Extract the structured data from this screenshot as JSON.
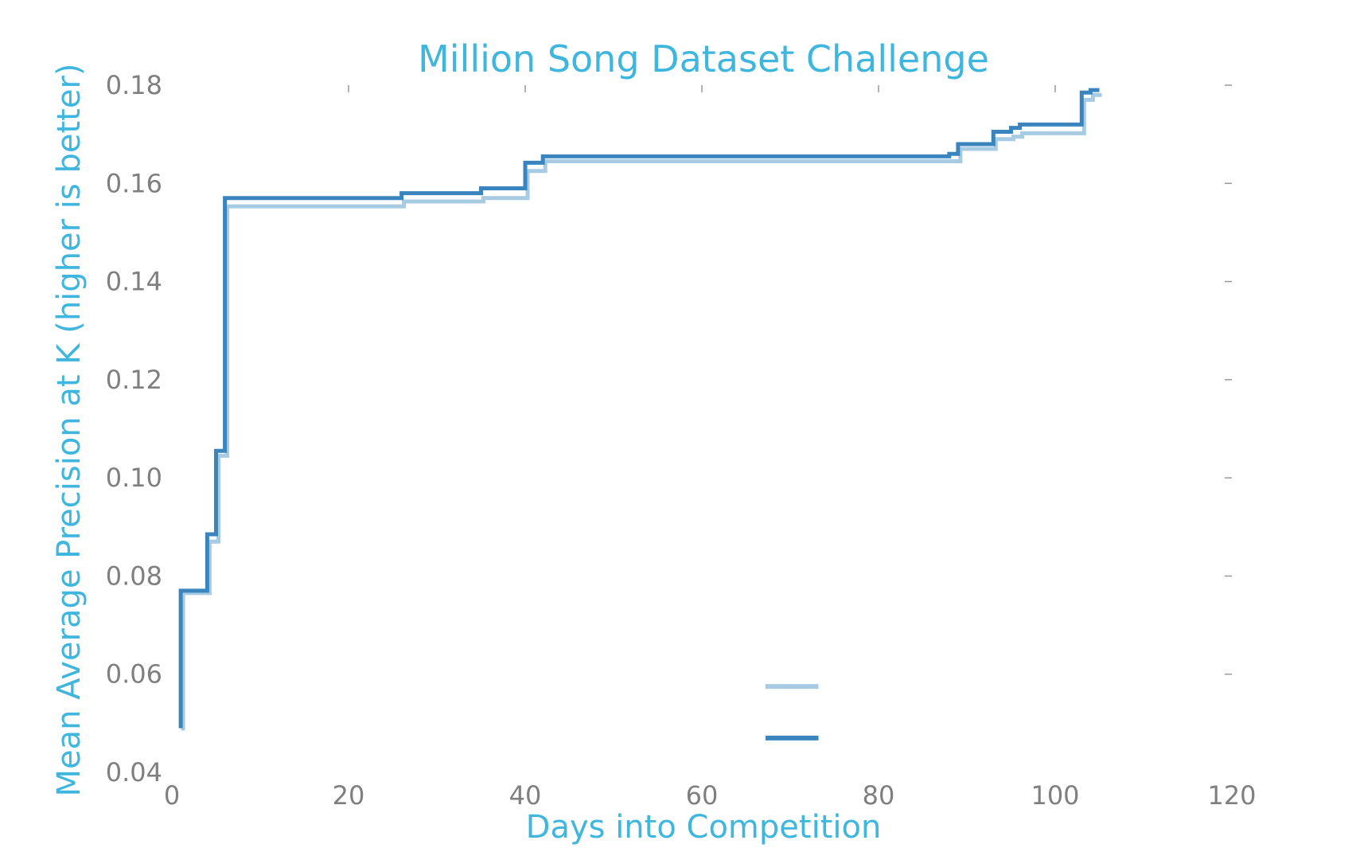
{
  "colors": {
    "accent_text": "#3fb6de",
    "tick_text": "#7f7f7f",
    "tick_mark": "#999999",
    "series_light": "#a6cbe3",
    "series_dark": "#3a85bd"
  },
  "chart_data": {
    "type": "line",
    "step": "post",
    "title": "Million Song Dataset Challenge",
    "xlabel": "Days into Competition",
    "ylabel": "Mean Average Precision at K (higher is better)",
    "xlim": [
      0,
      120
    ],
    "ylim": [
      0.04,
      0.18
    ],
    "xticks": [
      0,
      20,
      40,
      60,
      80,
      100,
      120
    ],
    "xtick_labels": [
      "0",
      "20",
      "40",
      "60",
      "80",
      "100",
      "120"
    ],
    "yticks": [
      0.04,
      0.06,
      0.08,
      0.1,
      0.12,
      0.14,
      0.16,
      0.18
    ],
    "ytick_labels": [
      "0.04",
      "0.06",
      "0.08",
      "0.10",
      "0.12",
      "0.14",
      "0.16",
      "0.18"
    ],
    "grid": false,
    "legend": {
      "position": "lower-center",
      "entries": [
        "",
        ""
      ]
    },
    "series": [
      {
        "color": "#a6cbe3",
        "x": [
          1,
          1,
          4,
          5,
          6,
          26,
          35,
          40,
          42,
          89,
          93,
          95,
          96,
          103,
          104,
          105
        ],
        "y": [
          0.049,
          0.077,
          0.0875,
          0.105,
          0.1558,
          0.1568,
          0.1575,
          0.163,
          0.165,
          0.1675,
          0.1695,
          0.17,
          0.1707,
          0.1775,
          0.1785,
          0.1785
        ]
      },
      {
        "color": "#3a85bd",
        "x": [
          1,
          1,
          4,
          5,
          6,
          26,
          35,
          40,
          42,
          88,
          89,
          93,
          95,
          96,
          103,
          104,
          105
        ],
        "y": [
          0.049,
          0.077,
          0.0885,
          0.1055,
          0.157,
          0.158,
          0.159,
          0.1642,
          0.1655,
          0.166,
          0.168,
          0.1705,
          0.1713,
          0.172,
          0.1785,
          0.179,
          0.179
        ]
      }
    ]
  }
}
